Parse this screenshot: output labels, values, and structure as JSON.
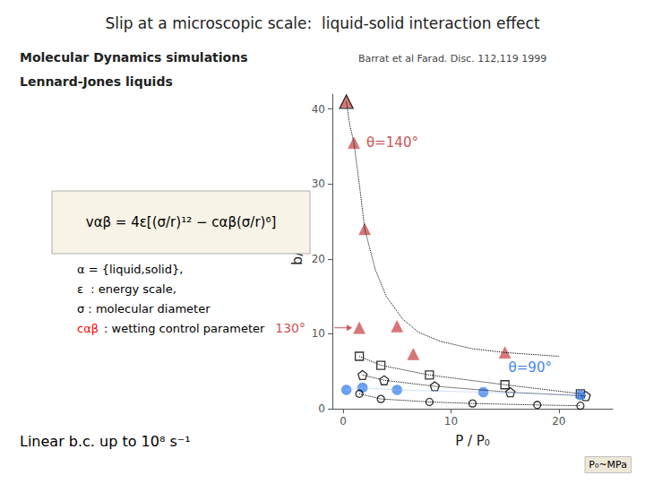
{
  "chart_data": {
    "type": "scatter",
    "title": "Slip at a microscopic scale:  liquid-solid interaction effect",
    "subtitle": [
      "Molecular Dynamics simulations",
      "Lennard-Jones liquids"
    ],
    "xlabel": "P / P₀",
    "ylabel": "b/ σ",
    "xlim": [
      -1,
      25
    ],
    "ylim": [
      0,
      42
    ],
    "xticks": [
      0,
      10,
      20
    ],
    "yticks": [
      0,
      10,
      20,
      30,
      40
    ],
    "grid": false,
    "series": [
      {
        "type": "line",
        "line_style": "dotted",
        "color": "#000000",
        "x": [
          0.3,
          0.6,
          1.0,
          1.5,
          2.0,
          3.0,
          4.0,
          5.5,
          7.0,
          9.0,
          12.0,
          15.0,
          20.0
        ],
        "values": [
          41.0,
          38.0,
          35.5,
          30.0,
          24.0,
          18.5,
          15.0,
          12.0,
          10.2,
          9.0,
          8.0,
          7.5,
          7.0
        ]
      },
      {
        "type": "line",
        "line_style": "dotted",
        "color": "#000000",
        "x": [
          1.5,
          3.5,
          8.0,
          15.0,
          22.0
        ],
        "values": [
          7.0,
          5.8,
          4.5,
          3.2,
          2.0
        ]
      },
      {
        "type": "line",
        "line_style": "dotted",
        "color": "#000000",
        "x": [
          1.8,
          3.8,
          8.5,
          15.5,
          22.5
        ],
        "values": [
          4.5,
          3.8,
          3.0,
          2.2,
          1.7
        ]
      },
      {
        "type": "line",
        "line_style": "dotted",
        "color": "#aabbff",
        "x": [
          0.3,
          1.8,
          5.0,
          13.0,
          22.0
        ],
        "values": [
          2.5,
          2.8,
          2.5,
          2.2,
          1.8
        ]
      },
      {
        "type": "line",
        "line_style": "dotted",
        "color": "#000000",
        "x": [
          1.5,
          3.5,
          8.0,
          12.0,
          18.0,
          22.0
        ],
        "values": [
          2.0,
          1.3,
          0.9,
          0.7,
          0.5,
          0.4
        ]
      },
      {
        "type": "scatter",
        "marker": "triangle",
        "color": "#cc5555",
        "x": [
          0.3,
          1.0,
          2.0,
          5.0,
          15.0
        ],
        "values": [
          41.0,
          35.5,
          24.0,
          11.0,
          7.5
        ]
      },
      {
        "type": "scatter",
        "marker": "triangle-open",
        "color": "#000000",
        "x": [
          0.3
        ],
        "values": [
          41.0
        ]
      },
      {
        "type": "scatter",
        "marker": "triangle",
        "color": "#cc5555",
        "x": [
          1.5,
          6.5
        ],
        "values": [
          10.8,
          7.3
        ]
      },
      {
        "type": "scatter",
        "marker": "square-open",
        "color": "#000000",
        "x": [
          1.5,
          3.5,
          8.0,
          15.0,
          22.0
        ],
        "values": [
          7.0,
          5.8,
          4.5,
          3.2,
          2.0
        ]
      },
      {
        "type": "scatter",
        "marker": "pentagon-open",
        "color": "#000000",
        "x": [
          1.8,
          3.8,
          8.5,
          15.5,
          22.5
        ],
        "values": [
          4.5,
          3.8,
          3.0,
          2.2,
          1.7
        ]
      },
      {
        "type": "scatter",
        "marker": "circle",
        "color": "#4488ee",
        "x": [
          0.3,
          1.8,
          5.0,
          13.0,
          22.0
        ],
        "values": [
          2.5,
          2.8,
          2.5,
          2.2,
          1.8
        ]
      },
      {
        "type": "scatter",
        "marker": "circle-open",
        "color": "#000000",
        "x": [
          1.5,
          3.5,
          8.0,
          12.0,
          18.0,
          22.0
        ],
        "values": [
          2.0,
          1.3,
          0.9,
          0.7,
          0.5,
          0.4
        ]
      }
    ],
    "annotations": [
      {
        "text": "Barrat et al Farad. Disc. 112,119 1999"
      },
      {
        "text": "vαβ = 4ε[(σ/r)¹² − cαβ(σ/r)⁶]"
      },
      {
        "text": "α = {liquid,solid},"
      },
      {
        "text": "ε  : energy scale,"
      },
      {
        "text": "σ : molecular diameter"
      },
      {
        "text": "cαβ",
        "color": "red"
      },
      {
        "text": ": wetting control parameter"
      },
      {
        "text": "Linear b.c. up to 10⁸ s⁻¹"
      },
      {
        "text": "P₀~MPa"
      },
      {
        "text": "θ=140°",
        "color": "#cc5555"
      },
      {
        "text": "130°",
        "color": "#cc5555"
      },
      {
        "text": "θ=90°",
        "color": "#4488ee"
      }
    ]
  }
}
